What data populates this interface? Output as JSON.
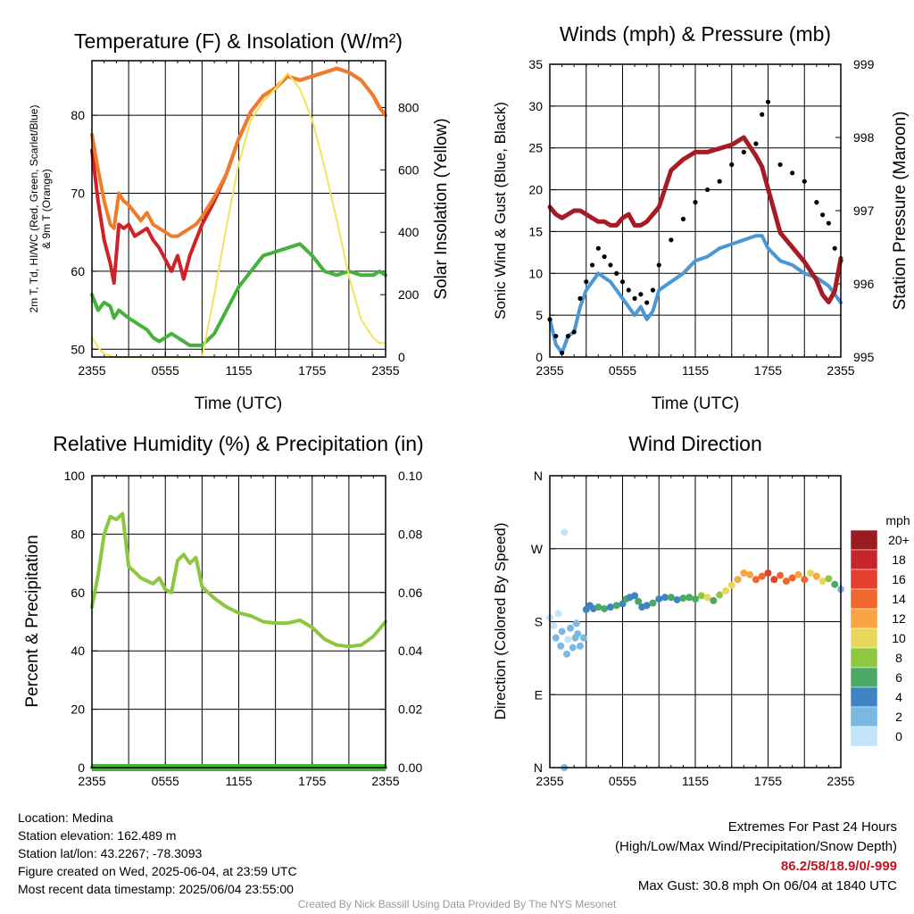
{
  "chart_data": [
    {
      "type": "line",
      "title": "Temperature (F) & Insolation (W/m²)",
      "xlabel": "Time (UTC)",
      "ylabel_lines": [
        "2m T, Td, HI/WC (Red, Green, Scarlet/Blue)",
        "& 9m T (Orange)"
      ],
      "y2label": "Solar Insolation (Yellow)",
      "x_ticks": [
        "2355",
        "0555",
        "1155",
        "1755",
        "2355"
      ],
      "ylim": [
        49,
        87
      ],
      "yticks": [
        50,
        60,
        70,
        80
      ],
      "y2lim": [
        0,
        950
      ],
      "y2ticks": [
        0,
        200,
        400,
        600,
        800
      ],
      "x_hours": [
        0,
        0.5,
        1,
        1.5,
        1.8,
        2.2,
        2.6,
        3,
        3.5,
        4,
        4.5,
        5,
        5.5,
        6,
        6.5,
        7,
        7.5,
        8,
        8.5,
        9,
        10,
        11,
        12,
        13,
        14,
        15,
        16,
        17,
        18,
        19,
        20,
        21,
        22,
        23,
        23.5,
        24
      ],
      "series": [
        {
          "color": "#cf2128",
          "values": [
            75.5,
            69,
            64,
            61,
            58.5,
            66,
            65.5,
            66,
            64.5,
            65,
            65.5,
            64,
            63,
            61.5,
            60,
            62,
            59,
            62,
            64,
            66,
            69,
            72.5,
            77,
            80.5,
            82.5,
            83.5,
            85,
            84.5,
            85,
            85.5,
            86,
            85.5,
            84.5,
            82.5,
            81,
            80
          ]
        },
        {
          "color": "#f07b2a",
          "values": [
            77.5,
            73,
            69,
            66,
            65.5,
            70,
            69,
            68.5,
            67.5,
            66.5,
            67.5,
            66,
            65.5,
            65,
            64.5,
            64.5,
            65,
            65.5,
            66,
            67,
            69.5,
            72.5,
            77,
            80.5,
            82.5,
            83.5,
            85,
            84.5,
            85,
            85.5,
            86,
            85.5,
            84.5,
            82.5,
            81,
            80
          ]
        },
        {
          "color": "#45b23a",
          "values": [
            57,
            55,
            56,
            55.5,
            54,
            55,
            54.5,
            54,
            53.5,
            53,
            52.5,
            51.5,
            51,
            51.5,
            52,
            51.5,
            51,
            50.5,
            50.5,
            50.5,
            52,
            55,
            58,
            60,
            62,
            62.5,
            63,
            63.5,
            62,
            60,
            59.5,
            60,
            59.5,
            59.5,
            60,
            59.5
          ]
        },
        {
          "color": "#f3e35a",
          "y2": true,
          "values": [
            65,
            30,
            10,
            5,
            0,
            0,
            0,
            0,
            0,
            0,
            0,
            0,
            0,
            0,
            0,
            0,
            0,
            0,
            0,
            0,
            200,
            420,
            620,
            760,
            820,
            860,
            910,
            860,
            760,
            610,
            440,
            260,
            120,
            60,
            45,
            45
          ]
        }
      ]
    },
    {
      "type": "line",
      "title": "Winds (mph) & Pressure (mb)",
      "xlabel": "Time (UTC)",
      "ylabel": "Sonic Wind & Gust (Blue, Black)",
      "y2label": "Station Pressure (Maroon)",
      "x_ticks": [
        "2355",
        "0555",
        "1155",
        "1755",
        "2355"
      ],
      "ylim": [
        0,
        35
      ],
      "yticks": [
        0,
        5,
        10,
        15,
        20,
        25,
        30,
        35
      ],
      "y2lim": [
        995,
        999
      ],
      "y2ticks": [
        995,
        996,
        997,
        998,
        999
      ],
      "x_hours": [
        0,
        0.5,
        1,
        1.5,
        2,
        2.5,
        3,
        3.5,
        4,
        4.5,
        5,
        5.5,
        6,
        6.5,
        7,
        7.5,
        8,
        8.5,
        9,
        10,
        11,
        12,
        13,
        14,
        15,
        16,
        17,
        17.5,
        18,
        19,
        20,
        21,
        22,
        22.5,
        23,
        23.5,
        24
      ],
      "series": [
        {
          "color": "#4a98d5",
          "values": [
            4.5,
            1.5,
            0.5,
            2.5,
            3,
            6,
            8,
            9,
            10,
            9.5,
            9,
            8,
            7,
            6,
            5,
            6,
            4.5,
            5.5,
            8,
            9,
            10,
            11.5,
            12,
            13,
            13.5,
            14,
            14.5,
            14.5,
            13,
            11.5,
            11,
            10,
            9.5,
            9,
            8.5,
            7.5,
            6.5
          ]
        },
        {
          "color": "#000000",
          "dots": true,
          "values": [
            4.5,
            2.5,
            0.5,
            2.5,
            3,
            7,
            9,
            11,
            13,
            12,
            11,
            10,
            9,
            8,
            7,
            7.5,
            6.5,
            8,
            11,
            14,
            16.5,
            18.5,
            20,
            21,
            23,
            24.5,
            25.5,
            29,
            30.5,
            23,
            22,
            21,
            18.5,
            17,
            16,
            13,
            11.5
          ]
        },
        {
          "color": "#a51c24",
          "y2": true,
          "values": [
            997.05,
            996.95,
            996.9,
            996.95,
            997,
            997,
            996.95,
            996.9,
            996.85,
            996.85,
            996.8,
            996.8,
            996.9,
            996.95,
            996.8,
            996.8,
            996.85,
            996.95,
            997.05,
            997.55,
            997.7,
            997.8,
            997.8,
            997.85,
            997.9,
            998,
            997.75,
            997.6,
            997.3,
            996.7,
            996.5,
            996.3,
            996.05,
            995.85,
            995.75,
            995.9,
            996.35
          ]
        }
      ]
    },
    {
      "type": "line",
      "title": "Relative Humidity (%) & Precipitation (in)",
      "ylabel": "Percent & Precipitation",
      "x_ticks": [
        "2355",
        "0555",
        "1155",
        "1755",
        "2355"
      ],
      "ylim": [
        0,
        100
      ],
      "yticks": [
        0,
        20,
        40,
        60,
        80,
        100
      ],
      "y2lim": [
        0,
        0.1
      ],
      "y2ticks": [
        "0.00",
        "0.02",
        "0.04",
        "0.06",
        "0.08",
        "0.10"
      ],
      "x_hours": [
        0,
        0.5,
        1,
        1.5,
        2,
        2.5,
        3,
        3.5,
        4,
        4.5,
        5,
        5.5,
        6,
        6.5,
        7,
        7.5,
        8,
        8.5,
        9,
        10,
        11,
        12,
        13,
        14,
        15,
        16,
        17,
        18,
        19,
        20,
        21,
        22,
        23,
        24
      ],
      "series": [
        {
          "color": "#8dc63f",
          "values": [
            55,
            66,
            80,
            86,
            85,
            87,
            69,
            67,
            65,
            64,
            63,
            65,
            61,
            60,
            71,
            73,
            70,
            72,
            62,
            58,
            55,
            53,
            52,
            50,
            49.5,
            49.5,
            50.5,
            48,
            44,
            42,
            41.5,
            42,
            45,
            50
          ]
        },
        {
          "color": "#45b23a",
          "values": [
            0,
            0,
            0,
            0,
            0,
            0,
            0,
            0,
            0,
            0,
            0,
            0,
            0,
            0,
            0,
            0,
            0,
            0,
            0,
            0,
            0,
            0,
            0,
            0,
            0,
            0,
            0,
            0,
            0,
            0,
            0,
            0,
            0,
            0
          ]
        }
      ]
    },
    {
      "type": "scatter",
      "title": "Wind Direction",
      "ylabel": "Direction (Colored By Speed)",
      "x_ticks": [
        "2355",
        "0555",
        "1155",
        "1755",
        "2355"
      ],
      "ylim": [
        0,
        360
      ],
      "y_ticks": [
        "N",
        "E",
        "S",
        "W",
        "N"
      ],
      "colorbar": {
        "title": "mph",
        "labels": [
          "20+",
          "18",
          "16",
          "14",
          "12",
          "10",
          "8",
          "6",
          "4",
          "2",
          "0"
        ],
        "colors": [
          "#9b1c20",
          "#c8242b",
          "#e3402f",
          "#f0672e",
          "#f7a545",
          "#e8d85a",
          "#8ec742",
          "#4aa964",
          "#3f84c4",
          "#7cb8e4",
          "#c3e4f8"
        ]
      },
      "points": [
        {
          "x": 0,
          "y": 185,
          "s": 1
        },
        {
          "x": 0.3,
          "y": 175,
          "s": 1
        },
        {
          "x": 0.5,
          "y": 160,
          "s": 2
        },
        {
          "x": 0.7,
          "y": 190,
          "s": 1
        },
        {
          "x": 0.9,
          "y": 150,
          "s": 2
        },
        {
          "x": 1.0,
          "y": 168,
          "s": 3
        },
        {
          "x": 1.2,
          "y": 290,
          "s": 1
        },
        {
          "x": 1.2,
          "y": 0,
          "s": 2
        },
        {
          "x": 1.4,
          "y": 140,
          "s": 2
        },
        {
          "x": 1.5,
          "y": 158,
          "s": 1
        },
        {
          "x": 1.7,
          "y": 172,
          "s": 2
        },
        {
          "x": 1.9,
          "y": 148,
          "s": 2
        },
        {
          "x": 2.1,
          "y": 160,
          "s": 2
        },
        {
          "x": 2.2,
          "y": 178,
          "s": 3
        },
        {
          "x": 2.3,
          "y": 165,
          "s": 2
        },
        {
          "x": 2.5,
          "y": 150,
          "s": 2
        },
        {
          "x": 2.8,
          "y": 160,
          "s": 2
        },
        {
          "x": 3.0,
          "y": 195,
          "s": 5
        },
        {
          "x": 3.3,
          "y": 200,
          "s": 5
        },
        {
          "x": 3.6,
          "y": 196,
          "s": 5
        },
        {
          "x": 4.0,
          "y": 198,
          "s": 6
        },
        {
          "x": 4.5,
          "y": 196,
          "s": 6
        },
        {
          "x": 5.0,
          "y": 198,
          "s": 5
        },
        {
          "x": 5.5,
          "y": 200,
          "s": 6
        },
        {
          "x": 6.0,
          "y": 202,
          "s": 5
        },
        {
          "x": 6.3,
          "y": 208,
          "s": 6
        },
        {
          "x": 6.6,
          "y": 210,
          "s": 4
        },
        {
          "x": 7.0,
          "y": 212,
          "s": 5
        },
        {
          "x": 7.3,
          "y": 205,
          "s": 6
        },
        {
          "x": 7.6,
          "y": 198,
          "s": 4
        },
        {
          "x": 8.0,
          "y": 200,
          "s": 5
        },
        {
          "x": 8.5,
          "y": 203,
          "s": 6
        },
        {
          "x": 9.0,
          "y": 208,
          "s": 4
        },
        {
          "x": 9.5,
          "y": 210,
          "s": 5
        },
        {
          "x": 10.0,
          "y": 210,
          "s": 6
        },
        {
          "x": 10.5,
          "y": 207,
          "s": 5
        },
        {
          "x": 11.0,
          "y": 209,
          "s": 6
        },
        {
          "x": 11.5,
          "y": 210,
          "s": 7
        },
        {
          "x": 12.0,
          "y": 208,
          "s": 6
        },
        {
          "x": 12.5,
          "y": 212,
          "s": 9
        },
        {
          "x": 13.0,
          "y": 210,
          "s": 10
        },
        {
          "x": 13.5,
          "y": 206,
          "s": 7
        },
        {
          "x": 14.0,
          "y": 213,
          "s": 9
        },
        {
          "x": 14.5,
          "y": 218,
          "s": 10
        },
        {
          "x": 15.0,
          "y": 225,
          "s": 11
        },
        {
          "x": 15.5,
          "y": 232,
          "s": 12
        },
        {
          "x": 16.0,
          "y": 240,
          "s": 13
        },
        {
          "x": 16.5,
          "y": 238,
          "s": 12
        },
        {
          "x": 17.0,
          "y": 232,
          "s": 14
        },
        {
          "x": 17.5,
          "y": 236,
          "s": 15
        },
        {
          "x": 18.0,
          "y": 240,
          "s": 16
        },
        {
          "x": 18.5,
          "y": 232,
          "s": 17
        },
        {
          "x": 19.0,
          "y": 237,
          "s": 14
        },
        {
          "x": 19.5,
          "y": 230,
          "s": 15
        },
        {
          "x": 20.0,
          "y": 234,
          "s": 14
        },
        {
          "x": 20.5,
          "y": 238,
          "s": 12
        },
        {
          "x": 21.0,
          "y": 232,
          "s": 15
        },
        {
          "x": 21.5,
          "y": 240,
          "s": 11
        },
        {
          "x": 22.0,
          "y": 236,
          "s": 13
        },
        {
          "x": 22.5,
          "y": 230,
          "s": 10
        },
        {
          "x": 23.0,
          "y": 233,
          "s": 9
        },
        {
          "x": 23.5,
          "y": 226,
          "s": 6
        },
        {
          "x": 24.0,
          "y": 220,
          "s": 3
        }
      ]
    }
  ],
  "info": {
    "location": "Location: Medina",
    "elevation": "Station elevation: 162.489 m",
    "latlon": "Station lat/lon: 43.2267; -78.3093",
    "created": "Figure created on Wed, 2025-06-04, at 23:59 UTC",
    "recent": "Most recent data timestamp: 2025/06/04 23:55:00"
  },
  "extremes": {
    "title": "Extremes For Past 24 Hours",
    "subtitle": "(High/Low/Max Wind/Precipitation/Snow Depth)",
    "values": "86.2/58/18.9/0/-999",
    "max_gust": "Max Gust: 30.8 mph On 06/04 at 1840 UTC"
  },
  "credit": "Created By Nick Bassill Using Data Provided By The NYS Mesonet"
}
